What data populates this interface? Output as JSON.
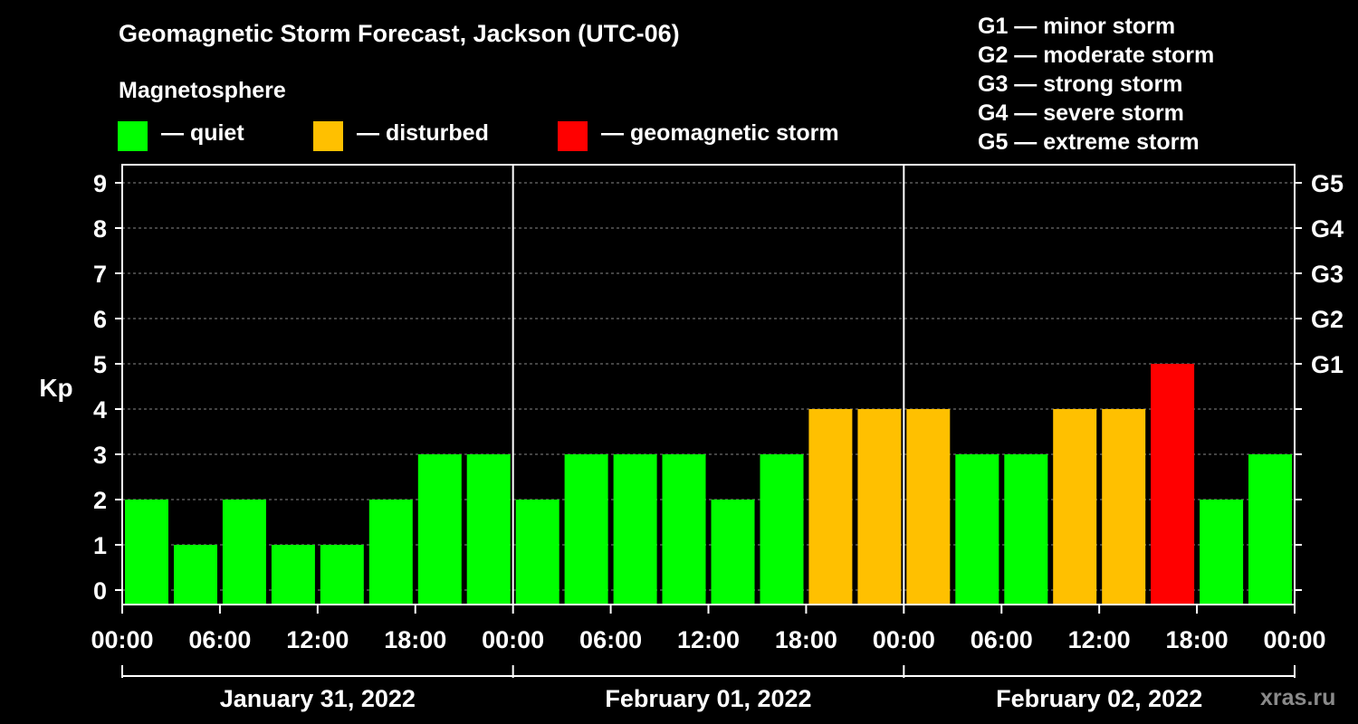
{
  "header": {
    "title": "Geomagnetic Storm Forecast, Jackson (UTC-06)",
    "subtitle": "Magnetosphere"
  },
  "legend": [
    {
      "label": "— quiet",
      "color": "#00ff00"
    },
    {
      "label": "— disturbed",
      "color": "#ffc000"
    },
    {
      "label": "— geomagnetic storm",
      "color": "#ff0000"
    }
  ],
  "storm_scale": [
    "G1 — minor storm",
    "G2 — moderate storm",
    "G3 — strong storm",
    "G4 — severe storm",
    "G5 — extreme storm"
  ],
  "watermark": "xras.ru",
  "chart_data": {
    "type": "bar",
    "ylabel": "Kp",
    "ylim": [
      0,
      9
    ],
    "yticks": [
      "0",
      "1",
      "2",
      "3",
      "4",
      "5",
      "6",
      "7",
      "8",
      "9"
    ],
    "right_ticks": [
      {
        "value": 5,
        "label": "G1"
      },
      {
        "value": 6,
        "label": "G2"
      },
      {
        "value": 7,
        "label": "G3"
      },
      {
        "value": 8,
        "label": "G4"
      },
      {
        "value": 9,
        "label": "G5"
      }
    ],
    "xtick_labels": [
      "00:00",
      "06:00",
      "12:00",
      "18:00",
      "00:00",
      "06:00",
      "12:00",
      "18:00",
      "00:00",
      "06:00",
      "12:00",
      "18:00",
      "00:00"
    ],
    "days": [
      "January 31, 2022",
      "February 01, 2022",
      "February 02, 2022"
    ],
    "interval_hours": 3,
    "values": [
      2,
      1,
      2,
      1,
      1,
      2,
      3,
      3,
      2,
      3,
      3,
      3,
      2,
      3,
      4,
      4,
      4,
      3,
      3,
      4,
      4,
      5,
      2,
      3
    ],
    "grid": "dashed horizontal"
  }
}
